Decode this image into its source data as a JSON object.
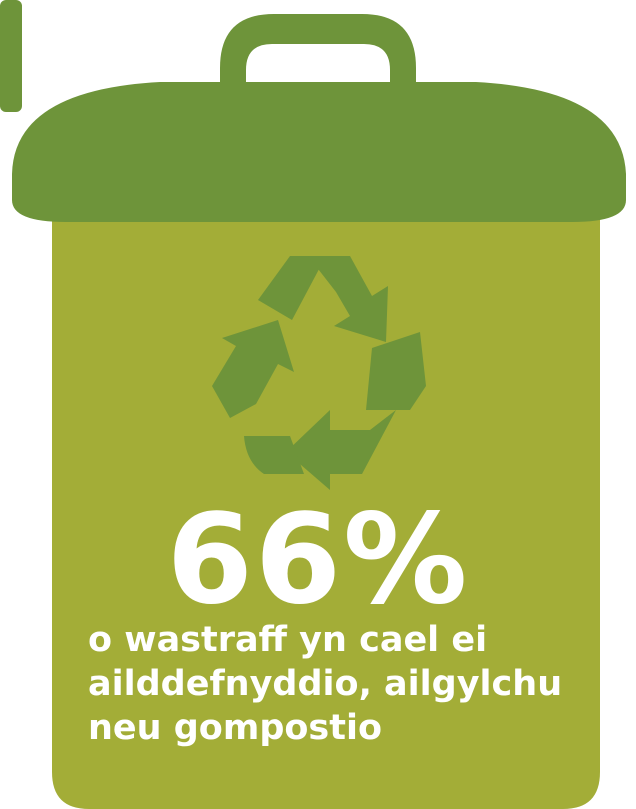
{
  "stat": {
    "value": "66%"
  },
  "caption": {
    "line1": "o wastraff yn cael ei",
    "line2": "ailddefnyddio, ailgylchu",
    "line3": "neu gompostio"
  },
  "colors": {
    "body": "#a3ad37",
    "lid": "#6e943a",
    "symbol": "#6e943a",
    "text": "#ffffff"
  },
  "icons": {
    "bin": "recycling-bin-icon",
    "symbol": "recycle-icon"
  }
}
